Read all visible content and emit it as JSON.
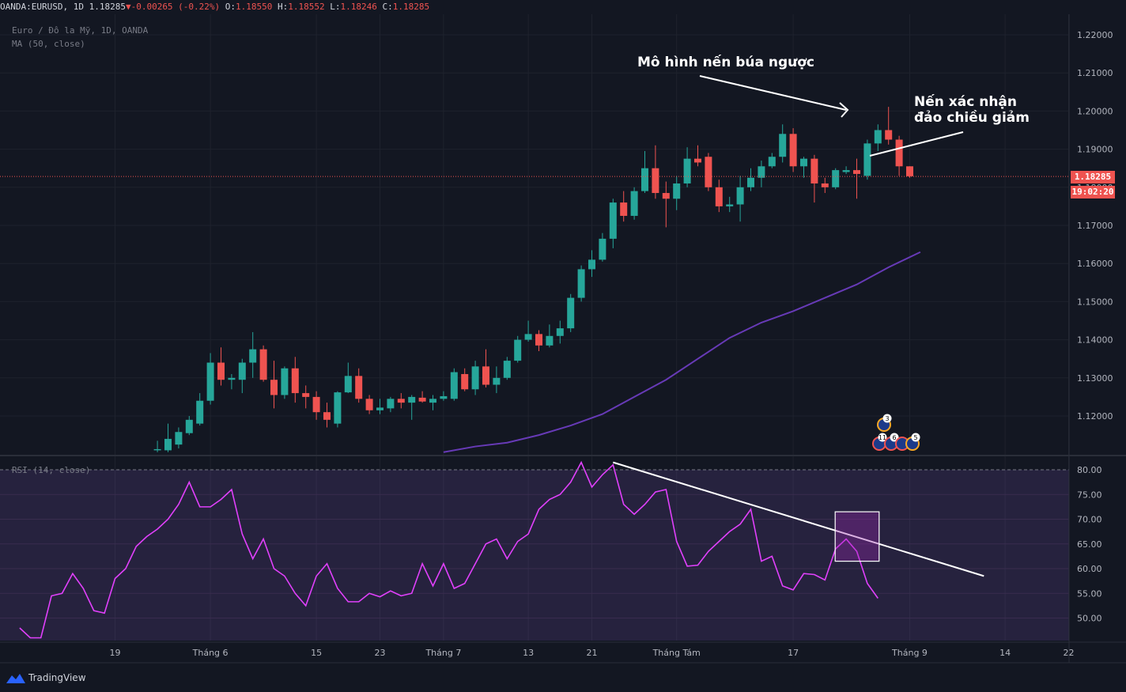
{
  "header": {
    "symbol": "OANDA:EURUSD,",
    "interval": "1D",
    "last": "1.18285",
    "arrow": "▼",
    "change": "-0.00265 (-0.22%)",
    "o_label": "O:",
    "o": "1.18550",
    "h_label": "H:",
    "h": "1.18552",
    "l_label": "L:",
    "l": "1.18246",
    "c_label": "C:",
    "c": "1.18285"
  },
  "legend": {
    "title": "Euro / Đô la Mỹ, 1D, OANDA",
    "ma": "MA (50, close)",
    "rsi": "RSI (14, close)"
  },
  "annotations": {
    "hammer": "Mô hình nến búa ngược",
    "confirm_line1": "Nến xác nhận",
    "confirm_line2": "đảo chiều giảm"
  },
  "price_tag": {
    "price": "1.18285",
    "countdown": "19:02:20"
  },
  "brand": "TradingView",
  "colors": {
    "background": "#131722",
    "up": "#26a69a",
    "down": "#ef5350",
    "ma": "#673ab7",
    "rsi": "#e040fb"
  },
  "chart_data": [
    {
      "type": "candlestick",
      "title": "Euro / Đô la Mỹ, 1D, OANDA",
      "yticks": [
        "1.22000",
        "1.21000",
        "1.20000",
        "1.19000",
        "1.18000",
        "1.17000",
        "1.16000",
        "1.15000",
        "1.14000",
        "1.13000",
        "1.12000"
      ],
      "ylim": [
        1.1115,
        1.2245
      ],
      "xticks": [
        {
          "label": "19",
          "day": 10
        },
        {
          "label": "Tháng 6",
          "day": 19
        },
        {
          "label": "15",
          "day": 29
        },
        {
          "label": "23",
          "day": 35
        },
        {
          "label": "Tháng 7",
          "day": 41
        },
        {
          "label": "13",
          "day": 49
        },
        {
          "label": "21",
          "day": 55
        },
        {
          "label": "Tháng Tám",
          "day": 63
        },
        {
          "label": "17",
          "day": 74
        },
        {
          "label": "Tháng 9",
          "day": 85
        },
        {
          "label": "14",
          "day": 94
        },
        {
          "label": "22",
          "day": 100
        }
      ],
      "candles": [
        {
          "day": 14,
          "o": 1.111,
          "h": 1.1135,
          "l": 1.1105,
          "c": 1.1113
        },
        {
          "day": 15,
          "o": 1.111,
          "h": 1.118,
          "l": 1.1105,
          "c": 1.114
        },
        {
          "day": 16,
          "o": 1.1125,
          "h": 1.117,
          "l": 1.1115,
          "c": 1.1158
        },
        {
          "day": 17,
          "o": 1.1155,
          "h": 1.12,
          "l": 1.115,
          "c": 1.119
        },
        {
          "day": 18,
          "o": 1.118,
          "h": 1.126,
          "l": 1.1175,
          "c": 1.124
        },
        {
          "day": 19,
          "o": 1.124,
          "h": 1.1365,
          "l": 1.123,
          "c": 1.134
        },
        {
          "day": 20,
          "o": 1.134,
          "h": 1.138,
          "l": 1.128,
          "c": 1.1295
        },
        {
          "day": 21,
          "o": 1.1295,
          "h": 1.131,
          "l": 1.127,
          "c": 1.13
        },
        {
          "day": 22,
          "o": 1.1295,
          "h": 1.135,
          "l": 1.126,
          "c": 1.134
        },
        {
          "day": 23,
          "o": 1.134,
          "h": 1.142,
          "l": 1.13,
          "c": 1.1375
        },
        {
          "day": 24,
          "o": 1.1375,
          "h": 1.1385,
          "l": 1.129,
          "c": 1.1295
        },
        {
          "day": 25,
          "o": 1.1295,
          "h": 1.1345,
          "l": 1.122,
          "c": 1.1255
        },
        {
          "day": 26,
          "o": 1.1255,
          "h": 1.133,
          "l": 1.1245,
          "c": 1.1325
        },
        {
          "day": 27,
          "o": 1.1325,
          "h": 1.1355,
          "l": 1.1235,
          "c": 1.126
        },
        {
          "day": 28,
          "o": 1.126,
          "h": 1.128,
          "l": 1.122,
          "c": 1.125
        },
        {
          "day": 29,
          "o": 1.125,
          "h": 1.1265,
          "l": 1.119,
          "c": 1.121
        },
        {
          "day": 30,
          "o": 1.121,
          "h": 1.1235,
          "l": 1.117,
          "c": 1.119
        },
        {
          "day": 31,
          "o": 1.118,
          "h": 1.1265,
          "l": 1.117,
          "c": 1.1262
        },
        {
          "day": 32,
          "o": 1.1262,
          "h": 1.134,
          "l": 1.126,
          "c": 1.1305
        },
        {
          "day": 33,
          "o": 1.1305,
          "h": 1.1325,
          "l": 1.1235,
          "c": 1.1245
        },
        {
          "day": 34,
          "o": 1.1245,
          "h": 1.1255,
          "l": 1.1205,
          "c": 1.1215
        },
        {
          "day": 35,
          "o": 1.1215,
          "h": 1.1245,
          "l": 1.1205,
          "c": 1.1222
        },
        {
          "day": 36,
          "o": 1.122,
          "h": 1.125,
          "l": 1.121,
          "c": 1.1245
        },
        {
          "day": 37,
          "o": 1.1245,
          "h": 1.126,
          "l": 1.122,
          "c": 1.1235
        },
        {
          "day": 38,
          "o": 1.1235,
          "h": 1.1255,
          "l": 1.119,
          "c": 1.125
        },
        {
          "day": 39,
          "o": 1.1248,
          "h": 1.1265,
          "l": 1.1235,
          "c": 1.1238
        },
        {
          "day": 40,
          "o": 1.1235,
          "h": 1.1255,
          "l": 1.1215,
          "c": 1.1245
        },
        {
          "day": 41,
          "o": 1.1245,
          "h": 1.1265,
          "l": 1.124,
          "c": 1.1252
        },
        {
          "day": 42,
          "o": 1.1245,
          "h": 1.1325,
          "l": 1.124,
          "c": 1.1315
        },
        {
          "day": 43,
          "o": 1.131,
          "h": 1.1325,
          "l": 1.1265,
          "c": 1.127
        },
        {
          "day": 44,
          "o": 1.127,
          "h": 1.1345,
          "l": 1.1255,
          "c": 1.133
        },
        {
          "day": 45,
          "o": 1.133,
          "h": 1.1375,
          "l": 1.1275,
          "c": 1.1282
        },
        {
          "day": 46,
          "o": 1.1282,
          "h": 1.133,
          "l": 1.126,
          "c": 1.13
        },
        {
          "day": 47,
          "o": 1.13,
          "h": 1.1355,
          "l": 1.1295,
          "c": 1.1345
        },
        {
          "day": 48,
          "o": 1.1345,
          "h": 1.141,
          "l": 1.134,
          "c": 1.14
        },
        {
          "day": 49,
          "o": 1.14,
          "h": 1.145,
          "l": 1.1395,
          "c": 1.1415
        },
        {
          "day": 50,
          "o": 1.1415,
          "h": 1.1425,
          "l": 1.137,
          "c": 1.1385
        },
        {
          "day": 51,
          "o": 1.1385,
          "h": 1.144,
          "l": 1.138,
          "c": 1.141
        },
        {
          "day": 52,
          "o": 1.141,
          "h": 1.145,
          "l": 1.139,
          "c": 1.143
        },
        {
          "day": 53,
          "o": 1.143,
          "h": 1.152,
          "l": 1.142,
          "c": 1.151
        },
        {
          "day": 54,
          "o": 1.151,
          "h": 1.1595,
          "l": 1.15,
          "c": 1.1585
        },
        {
          "day": 55,
          "o": 1.1585,
          "h": 1.1635,
          "l": 1.1565,
          "c": 1.161
        },
        {
          "day": 56,
          "o": 1.161,
          "h": 1.168,
          "l": 1.1605,
          "c": 1.1665
        },
        {
          "day": 57,
          "o": 1.1665,
          "h": 1.177,
          "l": 1.164,
          "c": 1.176
        },
        {
          "day": 58,
          "o": 1.176,
          "h": 1.179,
          "l": 1.171,
          "c": 1.1725
        },
        {
          "day": 59,
          "o": 1.1725,
          "h": 1.18,
          "l": 1.1715,
          "c": 1.179
        },
        {
          "day": 60,
          "o": 1.179,
          "h": 1.1895,
          "l": 1.1785,
          "c": 1.185
        },
        {
          "day": 61,
          "o": 1.185,
          "h": 1.191,
          "l": 1.177,
          "c": 1.1785
        },
        {
          "day": 62,
          "o": 1.1785,
          "h": 1.1815,
          "l": 1.1695,
          "c": 1.177
        },
        {
          "day": 63,
          "o": 1.177,
          "h": 1.183,
          "l": 1.174,
          "c": 1.181
        },
        {
          "day": 64,
          "o": 1.181,
          "h": 1.1905,
          "l": 1.18,
          "c": 1.1875
        },
        {
          "day": 65,
          "o": 1.1875,
          "h": 1.191,
          "l": 1.1855,
          "c": 1.1865
        },
        {
          "day": 66,
          "o": 1.188,
          "h": 1.189,
          "l": 1.179,
          "c": 1.18
        },
        {
          "day": 67,
          "o": 1.18,
          "h": 1.182,
          "l": 1.1735,
          "c": 1.175
        },
        {
          "day": 68,
          "o": 1.175,
          "h": 1.1775,
          "l": 1.1735,
          "c": 1.1755
        },
        {
          "day": 69,
          "o": 1.1755,
          "h": 1.183,
          "l": 1.171,
          "c": 1.18
        },
        {
          "day": 70,
          "o": 1.18,
          "h": 1.185,
          "l": 1.179,
          "c": 1.1825
        },
        {
          "day": 71,
          "o": 1.1825,
          "h": 1.187,
          "l": 1.18,
          "c": 1.1855
        },
        {
          "day": 72,
          "o": 1.1855,
          "h": 1.189,
          "l": 1.185,
          "c": 1.188
        },
        {
          "day": 73,
          "o": 1.188,
          "h": 1.1965,
          "l": 1.1865,
          "c": 1.194
        },
        {
          "day": 74,
          "o": 1.194,
          "h": 1.1955,
          "l": 1.184,
          "c": 1.1855
        },
        {
          "day": 75,
          "o": 1.1855,
          "h": 1.188,
          "l": 1.1825,
          "c": 1.1875
        },
        {
          "day": 76,
          "o": 1.1875,
          "h": 1.1885,
          "l": 1.176,
          "c": 1.181
        },
        {
          "day": 77,
          "o": 1.181,
          "h": 1.1825,
          "l": 1.1785,
          "c": 1.18
        },
        {
          "day": 78,
          "o": 1.18,
          "h": 1.185,
          "l": 1.1795,
          "c": 1.1845
        },
        {
          "day": 79,
          "o": 1.184,
          "h": 1.1855,
          "l": 1.1835,
          "c": 1.1845
        },
        {
          "day": 80,
          "o": 1.1845,
          "h": 1.1875,
          "l": 1.177,
          "c": 1.1835
        },
        {
          "day": 81,
          "o": 1.183,
          "h": 1.1925,
          "l": 1.182,
          "c": 1.1915
        },
        {
          "day": 82,
          "o": 1.1915,
          "h": 1.1965,
          "l": 1.1895,
          "c": 1.195
        },
        {
          "day": 83,
          "o": 1.195,
          "h": 1.2011,
          "l": 1.1912,
          "c": 1.1925
        },
        {
          "day": 84,
          "o": 1.1925,
          "h": 1.1935,
          "l": 1.183,
          "c": 1.1855
        },
        {
          "day": 85,
          "o": 1.1855,
          "h": 1.1855,
          "l": 1.1825,
          "c": 1.1829
        }
      ],
      "ma50": {
        "name": "MA (50, close)",
        "points": [
          {
            "day": 41,
            "v": 1.1105
          },
          {
            "day": 44,
            "v": 1.112
          },
          {
            "day": 47,
            "v": 1.113
          },
          {
            "day": 50,
            "v": 1.115
          },
          {
            "day": 53,
            "v": 1.1175
          },
          {
            "day": 56,
            "v": 1.1205
          },
          {
            "day": 59,
            "v": 1.125
          },
          {
            "day": 62,
            "v": 1.1295
          },
          {
            "day": 65,
            "v": 1.135
          },
          {
            "day": 68,
            "v": 1.1405
          },
          {
            "day": 71,
            "v": 1.1445
          },
          {
            "day": 74,
            "v": 1.1475
          },
          {
            "day": 77,
            "v": 1.151
          },
          {
            "day": 80,
            "v": 1.1545
          },
          {
            "day": 83,
            "v": 1.159
          },
          {
            "day": 86,
            "v": 1.163
          }
        ]
      }
    },
    {
      "type": "line",
      "title": "RSI (14, close)",
      "yticks": [
        "80.00",
        "75.00",
        "70.00",
        "65.00",
        "60.00",
        "55.00",
        "50.00"
      ],
      "ylim": [
        45.5,
        82.5
      ],
      "upper_band": 80,
      "points": [
        {
          "day": 1,
          "v": 48
        },
        {
          "day": 2,
          "v": 46
        },
        {
          "day": 3,
          "v": 46
        },
        {
          "day": 4,
          "v": 54.5
        },
        {
          "day": 5,
          "v": 55
        },
        {
          "day": 6,
          "v": 59
        },
        {
          "day": 7,
          "v": 56
        },
        {
          "day": 8,
          "v": 51.5
        },
        {
          "day": 9,
          "v": 51
        },
        {
          "day": 10,
          "v": 58
        },
        {
          "day": 11,
          "v": 60
        },
        {
          "day": 12,
          "v": 64.5
        },
        {
          "day": 13,
          "v": 66.5
        },
        {
          "day": 14,
          "v": 68
        },
        {
          "day": 15,
          "v": 70
        },
        {
          "day": 16,
          "v": 73
        },
        {
          "day": 17,
          "v": 77.5
        },
        {
          "day": 18,
          "v": 72.5
        },
        {
          "day": 19,
          "v": 72.5
        },
        {
          "day": 20,
          "v": 74
        },
        {
          "day": 21,
          "v": 76
        },
        {
          "day": 22,
          "v": 67
        },
        {
          "day": 23,
          "v": 62
        },
        {
          "day": 24,
          "v": 66
        },
        {
          "day": 25,
          "v": 60
        },
        {
          "day": 26,
          "v": 58.5
        },
        {
          "day": 27,
          "v": 55
        },
        {
          "day": 28,
          "v": 52.5
        },
        {
          "day": 29,
          "v": 58.5
        },
        {
          "day": 30,
          "v": 61
        },
        {
          "day": 31,
          "v": 56
        },
        {
          "day": 32,
          "v": 53.3
        },
        {
          "day": 33,
          "v": 53.3
        },
        {
          "day": 34,
          "v": 55
        },
        {
          "day": 35,
          "v": 54.3
        },
        {
          "day": 36,
          "v": 55.5
        },
        {
          "day": 37,
          "v": 54.5
        },
        {
          "day": 38,
          "v": 55
        },
        {
          "day": 39,
          "v": 61
        },
        {
          "day": 40,
          "v": 56.5
        },
        {
          "day": 41,
          "v": 61
        },
        {
          "day": 42,
          "v": 56
        },
        {
          "day": 43,
          "v": 57
        },
        {
          "day": 44,
          "v": 61
        },
        {
          "day": 45,
          "v": 65
        },
        {
          "day": 46,
          "v": 66
        },
        {
          "day": 47,
          "v": 62
        },
        {
          "day": 48,
          "v": 65.5
        },
        {
          "day": 49,
          "v": 67
        },
        {
          "day": 50,
          "v": 72
        },
        {
          "day": 51,
          "v": 74
        },
        {
          "day": 52,
          "v": 75
        },
        {
          "day": 53,
          "v": 77.5
        },
        {
          "day": 54,
          "v": 81.5
        },
        {
          "day": 55,
          "v": 76.5
        },
        {
          "day": 56,
          "v": 79
        },
        {
          "day": 57,
          "v": 81
        },
        {
          "day": 58,
          "v": 73
        },
        {
          "day": 59,
          "v": 71
        },
        {
          "day": 60,
          "v": 73
        },
        {
          "day": 61,
          "v": 75.5
        },
        {
          "day": 62,
          "v": 76
        },
        {
          "day": 63,
          "v": 65.5
        },
        {
          "day": 64,
          "v": 60.5
        },
        {
          "day": 65,
          "v": 60.7
        },
        {
          "day": 66,
          "v": 63.5
        },
        {
          "day": 67,
          "v": 65.5
        },
        {
          "day": 68,
          "v": 67.5
        },
        {
          "day": 69,
          "v": 69
        },
        {
          "day": 70,
          "v": 72
        },
        {
          "day": 71,
          "v": 61.5
        },
        {
          "day": 72,
          "v": 62.5
        },
        {
          "day": 73,
          "v": 56.5
        },
        {
          "day": 74,
          "v": 55.7
        },
        {
          "day": 75,
          "v": 59
        },
        {
          "day": 76,
          "v": 58.8
        },
        {
          "day": 77,
          "v": 57.7
        },
        {
          "day": 78,
          "v": 64
        },
        {
          "day": 79,
          "v": 66
        },
        {
          "day": 80,
          "v": 63.5
        },
        {
          "day": 81,
          "v": 57
        },
        {
          "day": 82,
          "v": 54
        }
      ],
      "trendline": [
        {
          "day": 57,
          "v": 81.5
        },
        {
          "day": 92,
          "v": 58.5
        }
      ],
      "highlight": {
        "day_from": 78,
        "day_to": 82,
        "v_from": 61.5,
        "v_to": 71.5
      }
    }
  ]
}
